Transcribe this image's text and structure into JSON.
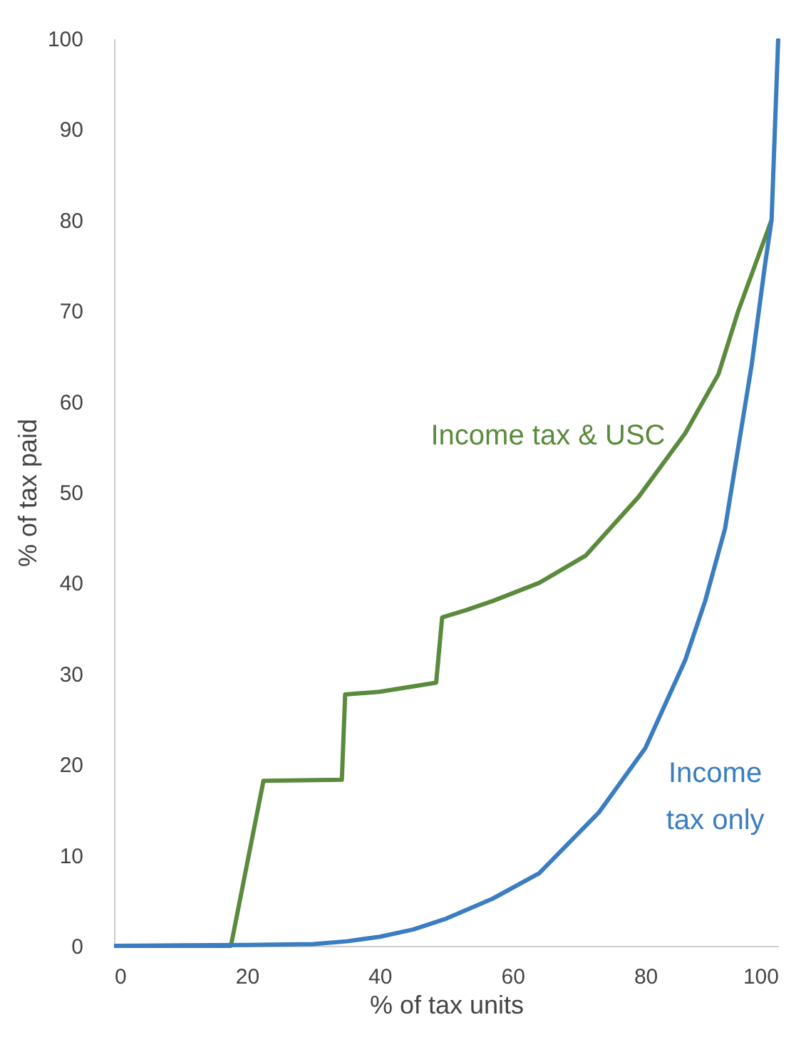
{
  "chart_data": {
    "type": "line",
    "xlabel": "% of tax units",
    "ylabel": "% of tax paid",
    "xlim": [
      0,
      100
    ],
    "ylim": [
      0,
      100
    ],
    "xticks": [
      0,
      20,
      40,
      60,
      80,
      100
    ],
    "yticks": [
      0,
      10,
      20,
      30,
      40,
      50,
      60,
      70,
      80,
      90,
      100
    ],
    "grid": false,
    "legend": false,
    "marker": "none",
    "line_style": "solid",
    "series": [
      {
        "name": "Income tax & USC",
        "color": "#5a8a3c",
        "x": [
          0,
          17.6,
          22.5,
          34.3,
          34.8,
          40,
          48.5,
          49.4,
          53,
          57,
          64,
          71,
          79,
          86,
          91,
          94,
          97,
          99
        ],
        "values": [
          0,
          0,
          18.2,
          18.3,
          27.7,
          28,
          29,
          36.2,
          37,
          38,
          40,
          43,
          49.5,
          56.5,
          63,
          70,
          76,
          80
        ]
      },
      {
        "name": "Income tax only",
        "color": "#3a7dc1",
        "x": [
          0,
          20,
          30,
          35,
          40,
          45,
          50,
          57,
          64,
          73,
          80,
          86,
          89,
          92,
          96,
          98,
          99,
          100
        ],
        "values": [
          0,
          0.1,
          0.2,
          0.5,
          1,
          1.8,
          3,
          5.2,
          8,
          14.7,
          21.8,
          31.5,
          38,
          46,
          64,
          75,
          80,
          100
        ]
      }
    ]
  }
}
